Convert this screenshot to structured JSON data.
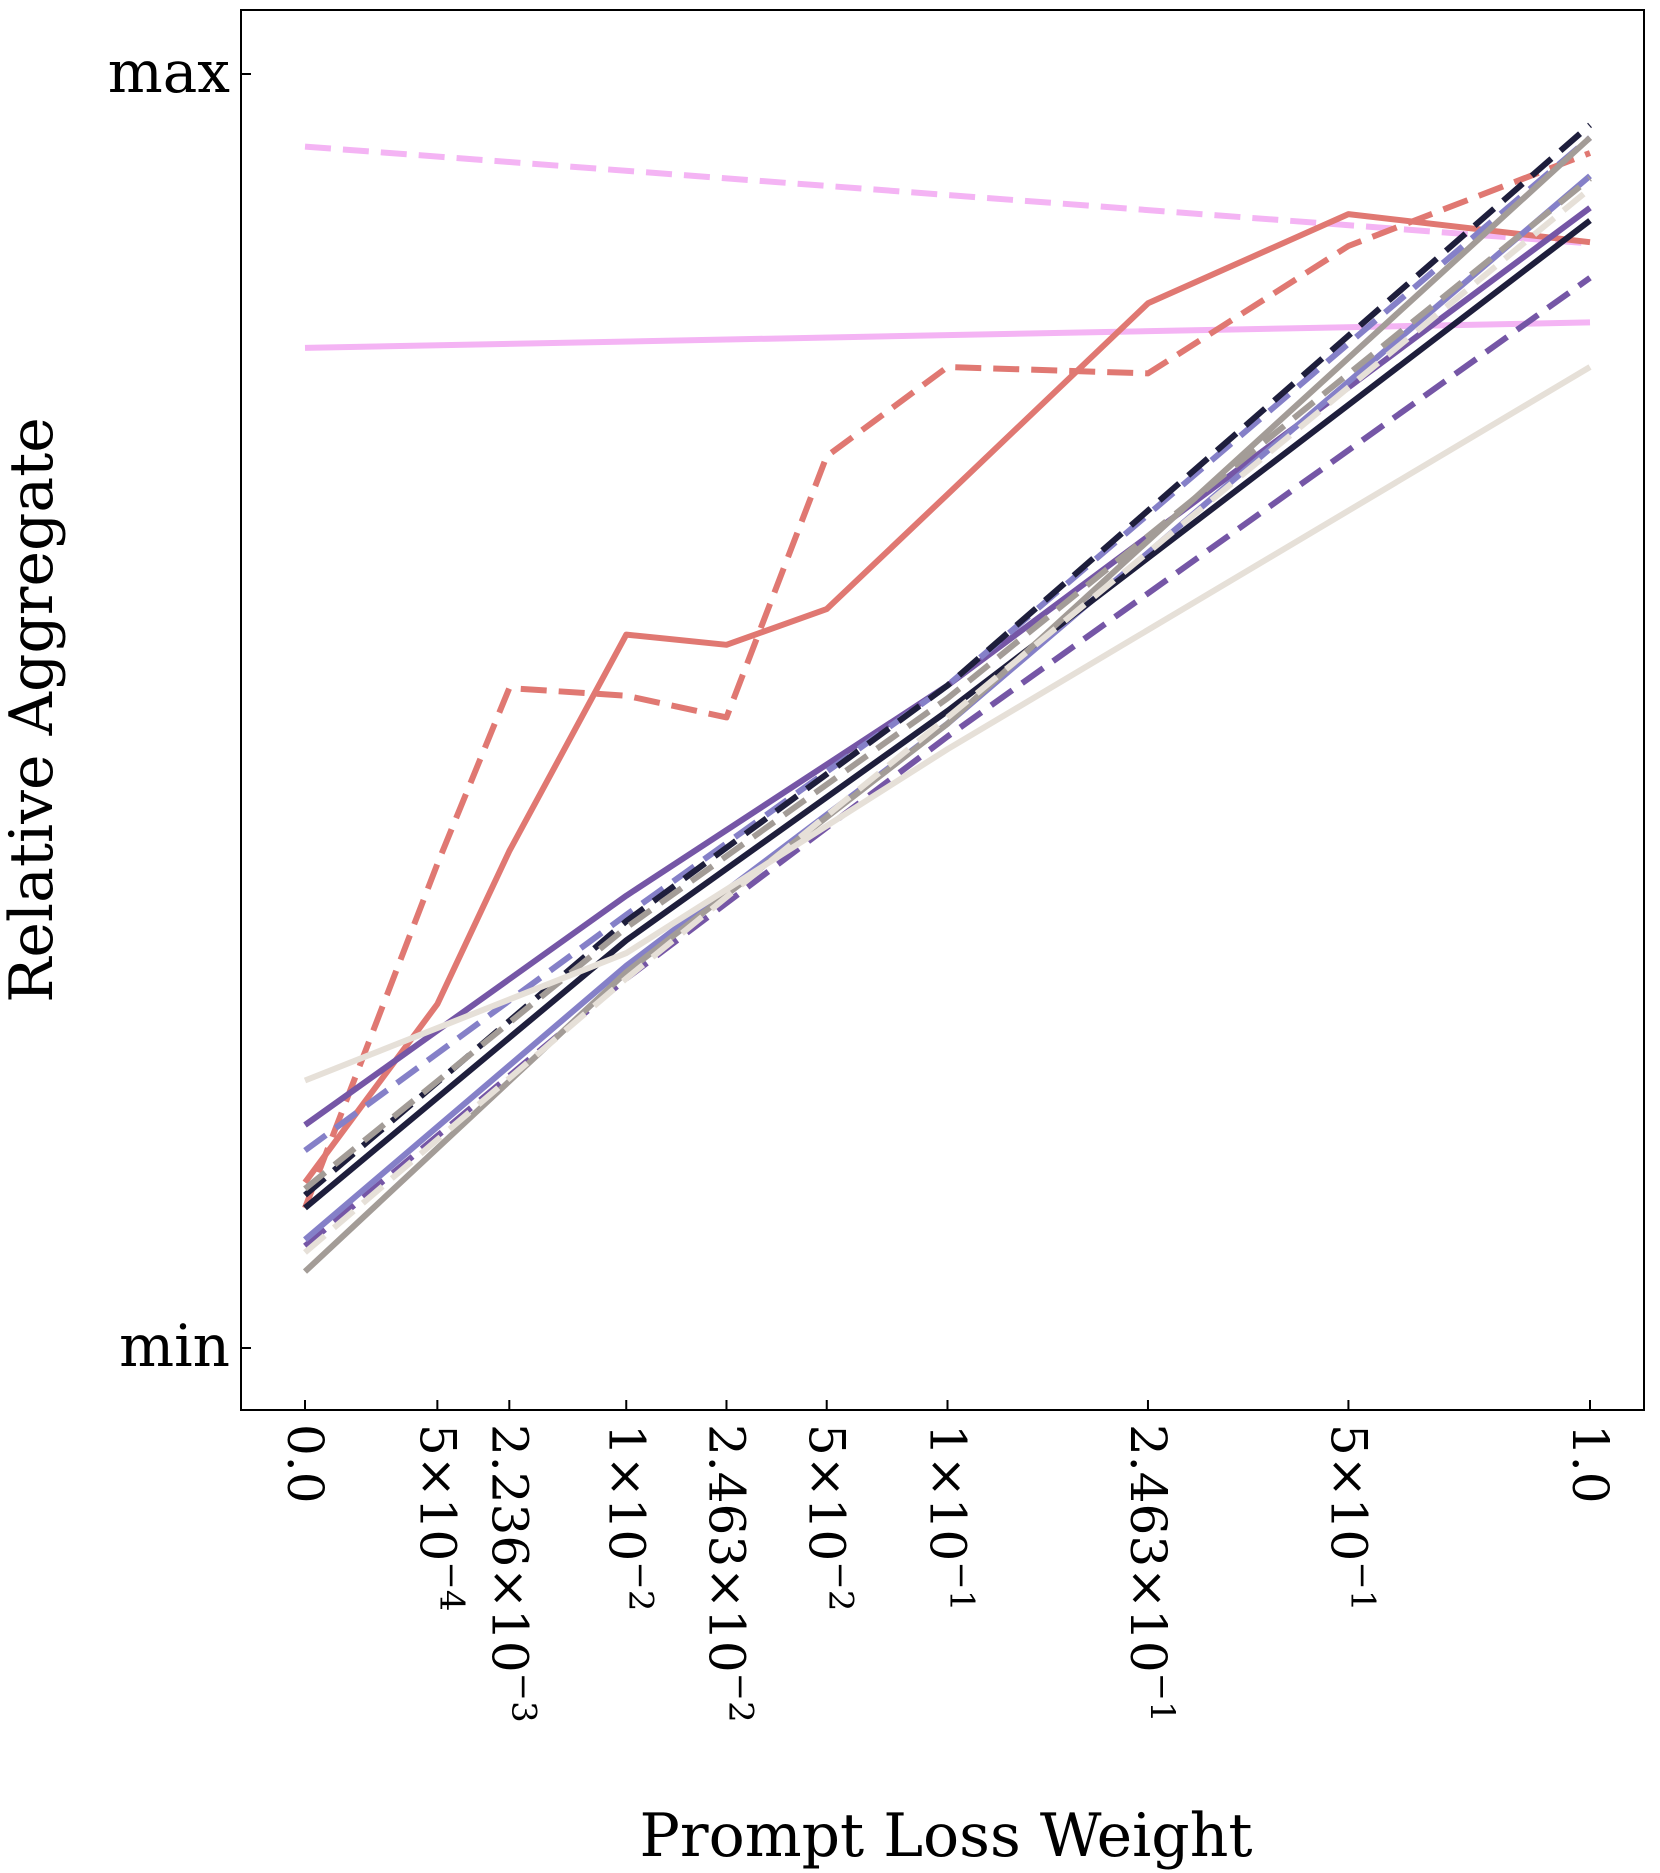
{
  "chart_data": {
    "type": "line",
    "title": "",
    "xlabel": "Prompt Loss Weight",
    "ylabel": "Relative Aggregate",
    "ylim": [
      0,
      1
    ],
    "y_tick_labels": [
      {
        "value": 0,
        "label": "min"
      },
      {
        "value": 1,
        "label": "max"
      }
    ],
    "x_tick_labels": [
      {
        "mant": "0.0",
        "exp": ""
      },
      {
        "mant": "5×10",
        "exp": "−4"
      },
      {
        "mant": "2.236×10",
        "exp": "−3"
      },
      {
        "mant": "1×10",
        "exp": "−2"
      },
      {
        "mant": "2.463×10",
        "exp": "−2"
      },
      {
        "mant": "5×10",
        "exp": "−2"
      },
      {
        "mant": "1×10",
        "exp": "−1"
      },
      {
        "mant": "2.463×10",
        "exp": "−1"
      },
      {
        "mant": "5×10",
        "exp": "−1"
      },
      {
        "mant": "1.0",
        "exp": ""
      }
    ],
    "x_positions": [
      0,
      0.103,
      0.159,
      0.25,
      0.328,
      0.406,
      0.5,
      0.656,
      0.812,
      1.0
    ],
    "grid": false,
    "legend": "none",
    "series": [
      {
        "color": "#f4b4f4",
        "dash": "dashed",
        "x": [
          0,
          1.0
        ],
        "y": [
          0.943,
          0.867
        ]
      },
      {
        "color": "#f4b4f4",
        "dash": "solid",
        "x": [
          0,
          1.0
        ],
        "y": [
          0.785,
          0.805
        ]
      },
      {
        "color": "#e07872",
        "dash": "solid",
        "x": [
          0,
          0.103,
          0.159,
          0.25,
          0.328,
          0.406,
          0.5,
          0.656,
          0.812,
          1.0
        ],
        "y": [
          0.13,
          0.27,
          0.39,
          0.56,
          0.552,
          0.58,
          0.67,
          0.82,
          0.89,
          0.868
        ]
      },
      {
        "color": "#e07872",
        "dash": "dashed",
        "x": [
          0,
          0.103,
          0.159,
          0.25,
          0.328,
          0.406,
          0.5,
          0.656,
          0.812,
          1.0
        ],
        "y": [
          0.11,
          0.38,
          0.518,
          0.512,
          0.495,
          0.7,
          0.77,
          0.765,
          0.865,
          0.938
        ]
      },
      {
        "color": "#7556a6",
        "dash": "solid",
        "x": [
          0,
          0.25,
          0.5,
          1.0
        ],
        "y": [
          0.175,
          0.355,
          0.52,
          0.895
        ]
      },
      {
        "color": "#7556a6",
        "dash": "dashed",
        "x": [
          0,
          0.25,
          0.5,
          1.0
        ],
        "y": [
          0.08,
          0.29,
          0.48,
          0.84
        ]
      },
      {
        "color": "#8580c8",
        "dash": "solid",
        "x": [
          0,
          0.25,
          0.5,
          1.0
        ],
        "y": [
          0.085,
          0.3,
          0.49,
          0.92
        ]
      },
      {
        "color": "#8580c8",
        "dash": "dashed",
        "x": [
          0,
          0.25,
          0.5,
          1.0
        ],
        "y": [
          0.155,
          0.34,
          0.52,
          0.95
        ]
      },
      {
        "color": "#1e1e3c",
        "dash": "solid",
        "x": [
          0,
          0.25,
          0.5,
          1.0
        ],
        "y": [
          0.11,
          0.32,
          0.5,
          0.885
        ]
      },
      {
        "color": "#1e1e3c",
        "dash": "dashed",
        "x": [
          0,
          0.25,
          0.5,
          1.0
        ],
        "y": [
          0.12,
          0.335,
          0.52,
          0.96
        ]
      },
      {
        "color": "#a39c97",
        "dash": "solid",
        "x": [
          0,
          0.25,
          0.5,
          1.0
        ],
        "y": [
          0.06,
          0.295,
          0.49,
          0.95
        ]
      },
      {
        "color": "#a39c97",
        "dash": "dashed",
        "x": [
          0,
          0.25,
          0.5,
          1.0
        ],
        "y": [
          0.125,
          0.33,
          0.51,
          0.918
        ]
      },
      {
        "color": "#e6e0d8",
        "dash": "solid",
        "x": [
          0,
          0.25,
          0.5,
          1.0
        ],
        "y": [
          0.21,
          0.31,
          0.47,
          0.77
        ]
      },
      {
        "color": "#e6e0d8",
        "dash": "dashed",
        "x": [
          0,
          0.25,
          0.5,
          1.0
        ],
        "y": [
          0.075,
          0.29,
          0.495,
          0.91
        ]
      }
    ]
  }
}
